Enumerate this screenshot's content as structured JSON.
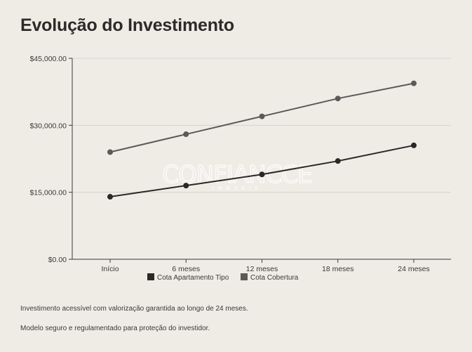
{
  "title": "Evolução do Investimento",
  "watermark": {
    "brand": "CONFIANCCE",
    "sub": "IMÓVEIS"
  },
  "notes": [
    "Investimento acessível com valorização garantida ao longo de 24 meses.",
    "Modelo seguro e regulamentado para proteção do investidor."
  ],
  "colors": {
    "background": "#efece6",
    "series1": "#2a2927",
    "series2": "#5c5a57",
    "grid": "#d6d3cd",
    "axis": "#3a3936"
  },
  "chart_data": {
    "type": "line",
    "categories": [
      "Início",
      "6 meses",
      "12 meses",
      "18 meses",
      "24 meses"
    ],
    "series": [
      {
        "name": "Cota Apartamento Tipo",
        "values": [
          14000,
          16500,
          19000,
          22000,
          25500
        ]
      },
      {
        "name": "Cota Cobertura",
        "values": [
          24000,
          28000,
          32000,
          36000,
          39400
        ]
      }
    ],
    "y_ticks": [
      0,
      15000,
      30000,
      45000
    ],
    "y_tick_labels": [
      "$0.00",
      "$15,000.00",
      "$30,000.00",
      "$45,000.00"
    ],
    "ylim": [
      0,
      45000
    ],
    "grid": true,
    "legend_position": "bottom"
  }
}
